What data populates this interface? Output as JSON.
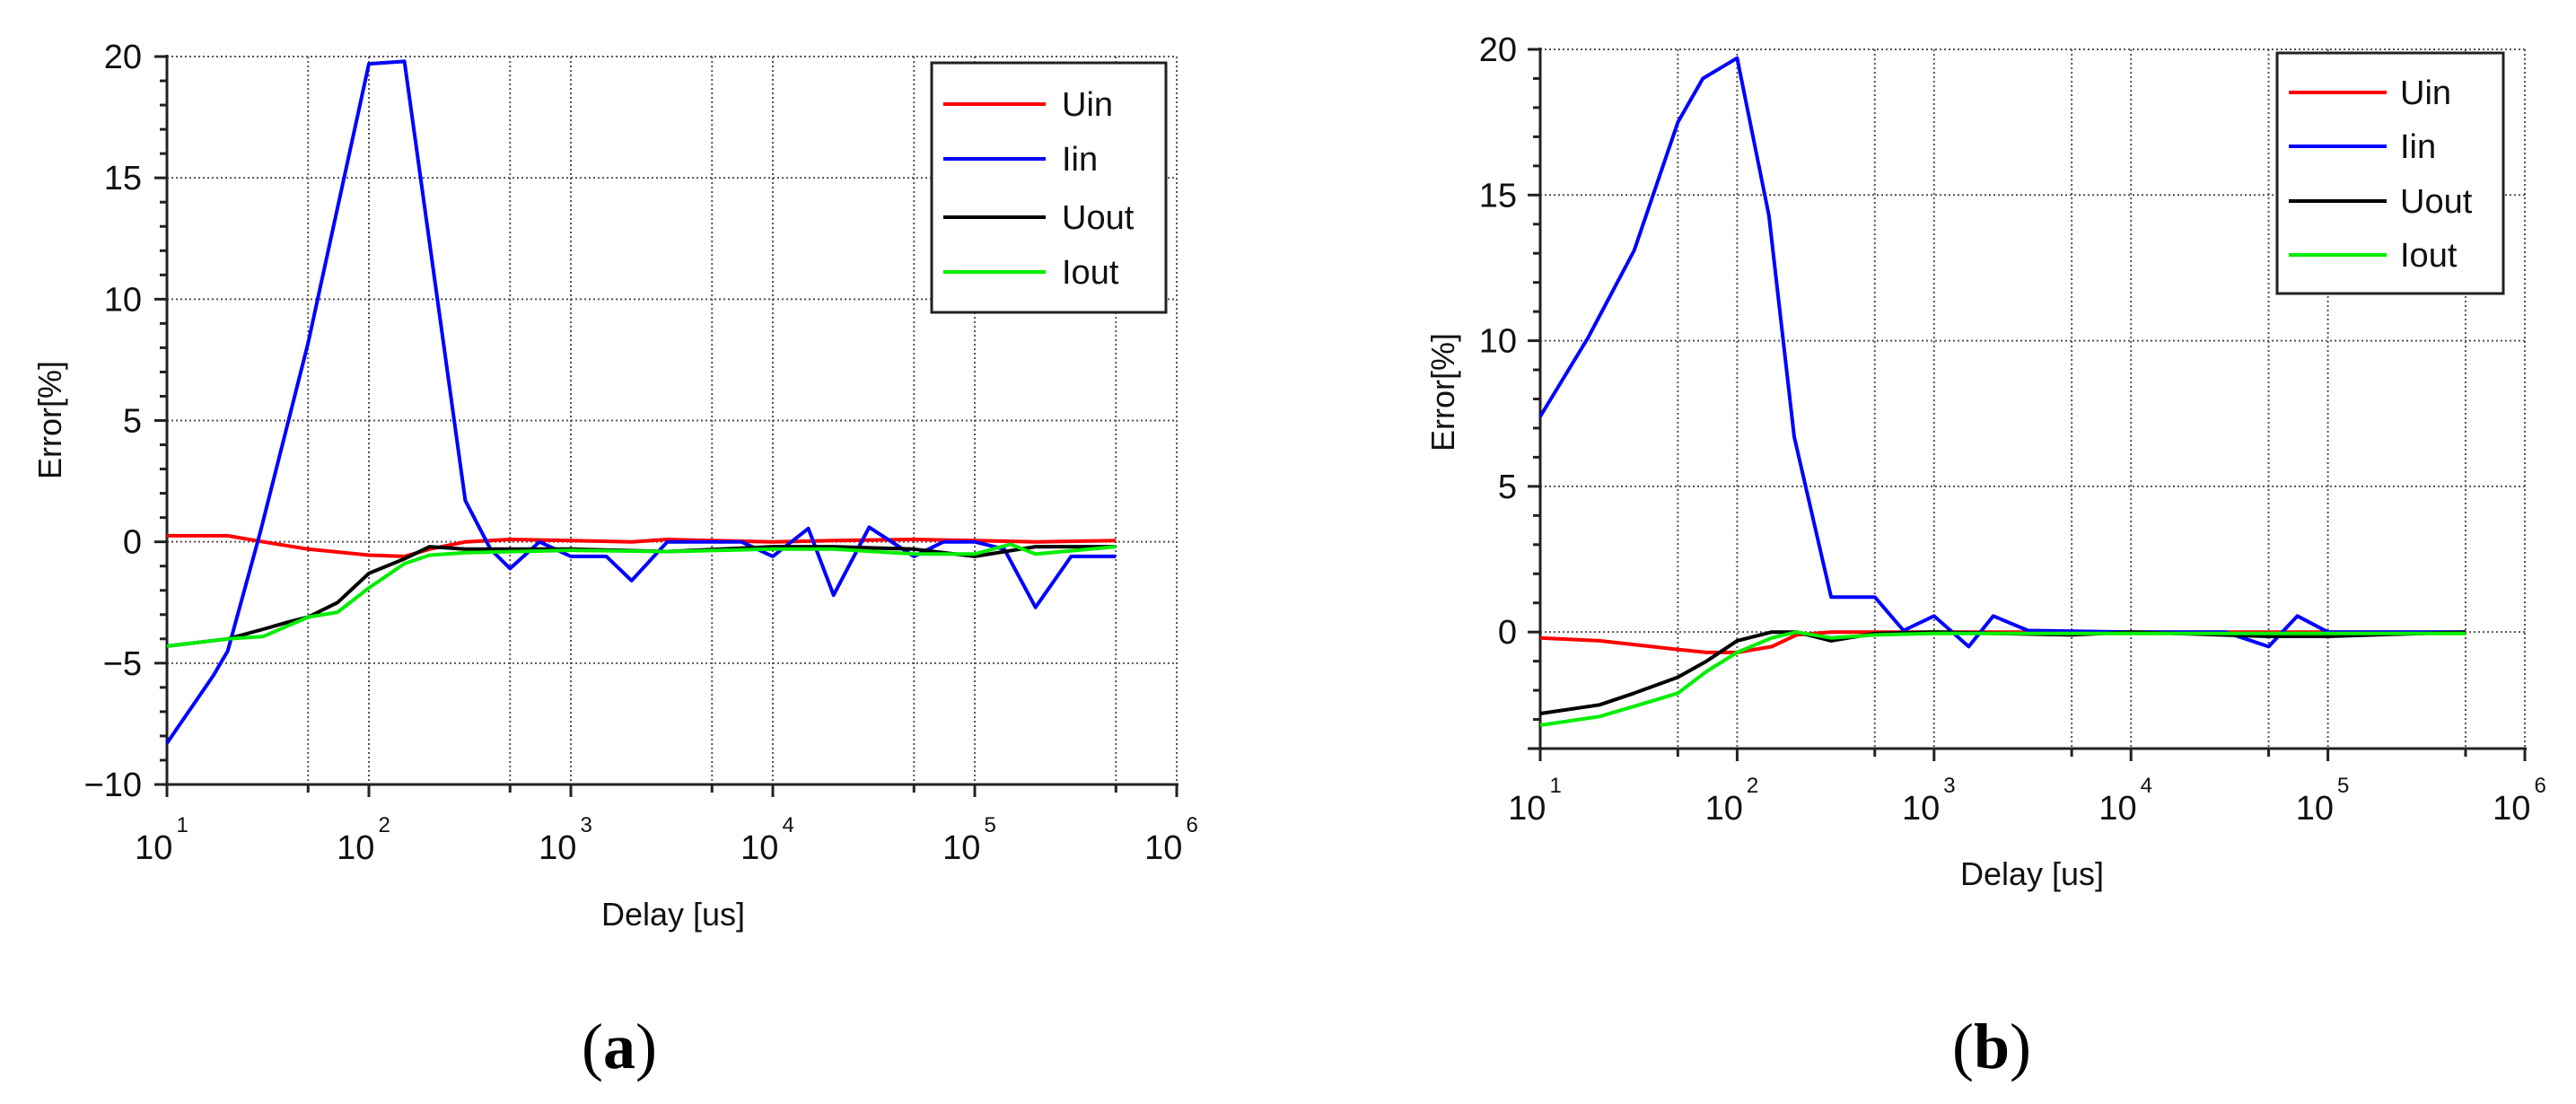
{
  "figure": {
    "panels": [
      {
        "id": "a",
        "caption_letter": "a"
      },
      {
        "id": "b",
        "caption_letter": "b"
      }
    ]
  },
  "chart_data": [
    {
      "type": "line",
      "panel": "(a)",
      "title": "",
      "xlabel": "Delay [us]",
      "ylabel": "Error[%]",
      "xscale": "log",
      "xlim": [
        10,
        1000000
      ],
      "ylim": [
        -10,
        20
      ],
      "yticks": [
        -10,
        -5,
        0,
        5,
        10,
        15,
        20
      ],
      "xticks": [
        {
          "base": "10",
          "exp": "1"
        },
        {
          "base": "10",
          "exp": "2"
        },
        {
          "base": "10",
          "exp": "3"
        },
        {
          "base": "10",
          "exp": "4"
        },
        {
          "base": "10",
          "exp": "5"
        },
        {
          "base": "10",
          "exp": "6"
        }
      ],
      "grid": true,
      "legend_position": "upper right",
      "series": [
        {
          "name": "Uin",
          "color": "#ff0000",
          "x": [
            10,
            20,
            30,
            50,
            100,
            150,
            200,
            300,
            500,
            1000,
            2000,
            3000,
            5000,
            10000,
            20000,
            50000,
            100000,
            200000,
            500000
          ],
          "y": [
            0.25,
            0.25,
            0,
            -0.3,
            -0.55,
            -0.6,
            -0.3,
            0,
            0.1,
            0.05,
            0,
            0.1,
            0.05,
            0,
            0.05,
            0.1,
            0.05,
            0,
            0.05
          ]
        },
        {
          "name": "Iin",
          "color": "#0000ff",
          "x": [
            10,
            17,
            20,
            29,
            50,
            100,
            150,
            300,
            400,
            500,
            700,
            1000,
            1500,
            2000,
            3000,
            7000,
            10000,
            15000,
            20000,
            30000,
            50000,
            70000,
            100000,
            140000,
            200000,
            300000,
            500000
          ],
          "y": [
            -8.3,
            -5.5,
            -4.5,
            0.4,
            8.2,
            19.7,
            19.8,
            1.7,
            -0.3,
            -1.1,
            0,
            -0.6,
            -0.6,
            -1.6,
            0,
            0,
            -0.6,
            0.55,
            -2.2,
            0.6,
            -0.6,
            0,
            0,
            -0.3,
            -2.7,
            -0.6,
            -0.6
          ]
        },
        {
          "name": "Uout",
          "color": "#000000",
          "x": [
            10,
            20,
            30,
            40,
            50,
            70,
            100,
            150,
            200,
            300,
            1000,
            3000,
            10000,
            20000,
            50000,
            100000,
            200000,
            500000
          ],
          "y": [
            -4.3,
            -4.0,
            -3.6,
            -3.3,
            -3.1,
            -2.5,
            -1.3,
            -0.7,
            -0.2,
            -0.3,
            -0.3,
            -0.4,
            -0.2,
            -0.2,
            -0.3,
            -0.6,
            -0.2,
            -0.2
          ]
        },
        {
          "name": "Iout",
          "color": "#00ee00",
          "x": [
            10,
            20,
            30,
            50,
            70,
            100,
            150,
            200,
            300,
            1000,
            3000,
            10000,
            20000,
            50000,
            100000,
            150000,
            200000,
            500000
          ],
          "y": [
            -4.3,
            -4.0,
            -3.9,
            -3.1,
            -2.9,
            -1.9,
            -0.9,
            -0.55,
            -0.45,
            -0.35,
            -0.4,
            -0.3,
            -0.3,
            -0.5,
            -0.5,
            -0.1,
            -0.5,
            -0.2
          ]
        }
      ]
    },
    {
      "type": "line",
      "panel": "(b)",
      "title": "",
      "xlabel": "Delay [us]",
      "ylabel": "Error[%]",
      "xscale": "log",
      "xlim": [
        10,
        1000000
      ],
      "ylim": [
        -4,
        20
      ],
      "yticks": [
        0,
        5,
        10,
        15,
        20
      ],
      "xticks": [
        {
          "base": "10",
          "exp": "1"
        },
        {
          "base": "10",
          "exp": "2"
        },
        {
          "base": "10",
          "exp": "3"
        },
        {
          "base": "10",
          "exp": "4"
        },
        {
          "base": "10",
          "exp": "5"
        },
        {
          "base": "10",
          "exp": "6"
        }
      ],
      "grid": true,
      "legend_position": "upper right",
      "series": [
        {
          "name": "Uin",
          "color": "#ff0000",
          "x": [
            10,
            20,
            50,
            70,
            100,
            150,
            200,
            300,
            1000,
            10000,
            100000,
            500000
          ],
          "y": [
            -0.2,
            -0.3,
            -0.6,
            -0.7,
            -0.7,
            -0.5,
            -0.1,
            0,
            0,
            0,
            0,
            0
          ]
        },
        {
          "name": "Iin",
          "color": "#0000ff",
          "x": [
            10,
            17.5,
            30,
            50,
            67,
            100,
            145,
            195,
            300,
            500,
            700,
            1000,
            1500,
            2000,
            3000,
            10000,
            30000,
            50000,
            70000,
            100000,
            500000
          ],
          "y": [
            7.4,
            10.1,
            13.1,
            17.5,
            19.0,
            19.7,
            14.3,
            6.7,
            1.2,
            1.2,
            0.05,
            0.55,
            -0.5,
            0.55,
            0.05,
            0,
            0,
            -0.5,
            0.55,
            0,
            0
          ]
        },
        {
          "name": "Uout",
          "color": "#000000",
          "x": [
            10,
            20,
            30,
            50,
            70,
            100,
            150,
            200,
            300,
            500,
            1000,
            5000,
            10000,
            50000,
            100000,
            500000
          ],
          "y": [
            -2.8,
            -2.5,
            -2.1,
            -1.55,
            -1.0,
            -0.3,
            0,
            0,
            -0.3,
            -0.05,
            0,
            -0.1,
            0,
            -0.15,
            -0.15,
            0
          ]
        },
        {
          "name": "Iout",
          "color": "#00ee00",
          "x": [
            10,
            20,
            30,
            50,
            70,
            100,
            150,
            200,
            300,
            500,
            1000,
            10000,
            100000,
            500000
          ],
          "y": [
            -3.2,
            -2.9,
            -2.55,
            -2.1,
            -1.35,
            -0.7,
            -0.2,
            0,
            -0.2,
            -0.1,
            -0.05,
            -0.05,
            -0.05,
            -0.05
          ]
        }
      ]
    }
  ]
}
